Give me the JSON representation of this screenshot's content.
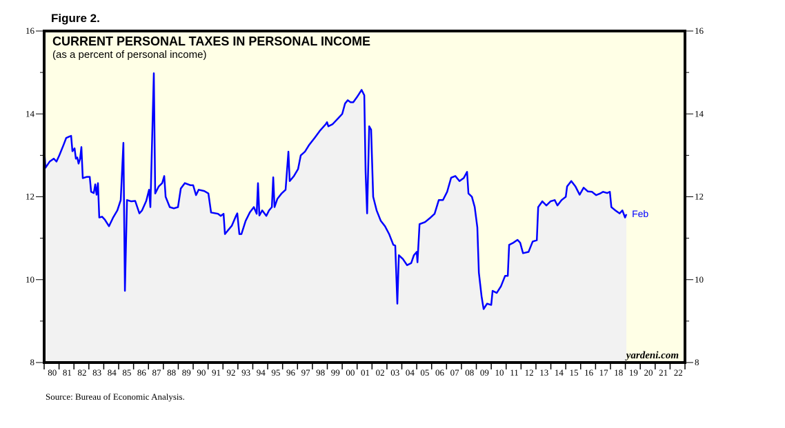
{
  "figure_label": "Figure 2.",
  "source": "Source: Bureau of Economic Analysis.",
  "brand": "yardeni.com",
  "colors": {
    "line": "#0000ff",
    "plot_bg": "#ffffe6",
    "area_fill": "#f2f2f2",
    "frame": "#000000"
  },
  "chart_data": {
    "type": "area",
    "title": "CURRENT PERSONAL TAXES IN PERSONAL INCOME",
    "subtitle": "(as a percent of personal income)",
    "ylim": [
      8,
      16
    ],
    "xlim": [
      1980,
      2023
    ],
    "y_ticks": [
      "8",
      "10",
      "12",
      "14",
      "16"
    ],
    "x_tick_labels": [
      "80",
      "81",
      "82",
      "83",
      "84",
      "85",
      "86",
      "87",
      "88",
      "89",
      "90",
      "91",
      "92",
      "93",
      "94",
      "95",
      "96",
      "97",
      "98",
      "99",
      "00",
      "01",
      "02",
      "03",
      "04",
      "05",
      "06",
      "07",
      "08",
      "09",
      "10",
      "11",
      "12",
      "13",
      "14",
      "15",
      "16",
      "17",
      "18",
      "19",
      "20",
      "21",
      "22"
    ],
    "end_label": "Feb",
    "grid": false,
    "series": [
      {
        "points": [
          [
            1980.0,
            13.17
          ],
          [
            1980.09,
            12.7
          ],
          [
            1980.37,
            12.85
          ],
          [
            1980.65,
            12.92
          ],
          [
            1980.83,
            12.85
          ],
          [
            1981.02,
            13.0
          ],
          [
            1981.3,
            13.25
          ],
          [
            1981.48,
            13.42
          ],
          [
            1981.67,
            13.45
          ],
          [
            1981.81,
            13.47
          ],
          [
            1981.9,
            13.1
          ],
          [
            1982.04,
            13.17
          ],
          [
            1982.13,
            12.92
          ],
          [
            1982.22,
            12.95
          ],
          [
            1982.31,
            12.8
          ],
          [
            1982.41,
            12.92
          ],
          [
            1982.5,
            13.2
          ],
          [
            1982.59,
            12.45
          ],
          [
            1982.87,
            12.48
          ],
          [
            1983.06,
            12.48
          ],
          [
            1983.15,
            12.12
          ],
          [
            1983.33,
            12.09
          ],
          [
            1983.43,
            12.3
          ],
          [
            1983.52,
            12.05
          ],
          [
            1983.61,
            12.33
          ],
          [
            1983.7,
            11.5
          ],
          [
            1983.89,
            11.52
          ],
          [
            1984.07,
            11.45
          ],
          [
            1984.35,
            11.29
          ],
          [
            1984.63,
            11.5
          ],
          [
            1984.91,
            11.67
          ],
          [
            1985.14,
            11.92
          ],
          [
            1985.32,
            13.3
          ],
          [
            1985.42,
            9.73
          ],
          [
            1985.56,
            11.92
          ],
          [
            1985.83,
            11.89
          ],
          [
            1986.11,
            11.9
          ],
          [
            1986.39,
            11.6
          ],
          [
            1986.57,
            11.67
          ],
          [
            1986.85,
            11.9
          ],
          [
            1987.04,
            12.17
          ],
          [
            1987.13,
            11.75
          ],
          [
            1987.36,
            14.98
          ],
          [
            1987.45,
            12.08
          ],
          [
            1987.69,
            12.25
          ],
          [
            1987.92,
            12.33
          ],
          [
            1988.06,
            12.5
          ],
          [
            1988.15,
            12.0
          ],
          [
            1988.43,
            11.75
          ],
          [
            1988.7,
            11.72
          ],
          [
            1988.98,
            11.75
          ],
          [
            1989.17,
            12.2
          ],
          [
            1989.44,
            12.33
          ],
          [
            1989.81,
            12.28
          ],
          [
            1990.0,
            12.28
          ],
          [
            1990.19,
            12.04
          ],
          [
            1990.37,
            12.17
          ],
          [
            1990.74,
            12.14
          ],
          [
            1991.02,
            12.08
          ],
          [
            1991.2,
            11.62
          ],
          [
            1991.67,
            11.59
          ],
          [
            1991.85,
            11.54
          ],
          [
            1992.04,
            11.59
          ],
          [
            1992.13,
            11.1
          ],
          [
            1992.31,
            11.18
          ],
          [
            1992.59,
            11.3
          ],
          [
            1992.87,
            11.54
          ],
          [
            1992.96,
            11.6
          ],
          [
            1993.1,
            11.1
          ],
          [
            1993.24,
            11.1
          ],
          [
            1993.52,
            11.42
          ],
          [
            1993.8,
            11.62
          ],
          [
            1994.07,
            11.75
          ],
          [
            1994.26,
            11.59
          ],
          [
            1994.35,
            12.33
          ],
          [
            1994.44,
            11.55
          ],
          [
            1994.63,
            11.67
          ],
          [
            1994.91,
            11.54
          ],
          [
            1995.09,
            11.67
          ],
          [
            1995.28,
            11.75
          ],
          [
            1995.37,
            12.47
          ],
          [
            1995.46,
            11.75
          ],
          [
            1995.65,
            11.95
          ],
          [
            1995.93,
            12.08
          ],
          [
            1996.2,
            12.17
          ],
          [
            1996.39,
            13.09
          ],
          [
            1996.48,
            12.38
          ],
          [
            1996.76,
            12.5
          ],
          [
            1997.04,
            12.67
          ],
          [
            1997.22,
            13.0
          ],
          [
            1997.5,
            13.09
          ],
          [
            1997.78,
            13.25
          ],
          [
            1998.15,
            13.42
          ],
          [
            1998.52,
            13.6
          ],
          [
            1998.89,
            13.75
          ],
          [
            1998.98,
            13.8
          ],
          [
            1999.07,
            13.7
          ],
          [
            1999.35,
            13.75
          ],
          [
            1999.72,
            13.89
          ],
          [
            2000.0,
            14.0
          ],
          [
            2000.19,
            14.25
          ],
          [
            2000.37,
            14.33
          ],
          [
            2000.56,
            14.28
          ],
          [
            2000.74,
            14.28
          ],
          [
            2001.02,
            14.42
          ],
          [
            2001.3,
            14.58
          ],
          [
            2001.48,
            14.45
          ],
          [
            2001.57,
            12.6
          ],
          [
            2001.67,
            11.6
          ],
          [
            2001.81,
            13.7
          ],
          [
            2001.94,
            13.62
          ],
          [
            2002.08,
            12.0
          ],
          [
            2002.31,
            11.67
          ],
          [
            2002.59,
            11.42
          ],
          [
            2002.87,
            11.29
          ],
          [
            2003.15,
            11.1
          ],
          [
            2003.43,
            10.84
          ],
          [
            2003.56,
            10.82
          ],
          [
            2003.7,
            9.42
          ],
          [
            2003.8,
            10.59
          ],
          [
            2004.07,
            10.5
          ],
          [
            2004.35,
            10.35
          ],
          [
            2004.63,
            10.4
          ],
          [
            2004.81,
            10.59
          ],
          [
            2005.0,
            10.67
          ],
          [
            2005.05,
            10.42
          ],
          [
            2005.19,
            11.34
          ],
          [
            2005.56,
            11.39
          ],
          [
            2005.93,
            11.5
          ],
          [
            2006.2,
            11.59
          ],
          [
            2006.48,
            11.92
          ],
          [
            2006.76,
            11.92
          ],
          [
            2007.04,
            12.12
          ],
          [
            2007.31,
            12.46
          ],
          [
            2007.59,
            12.5
          ],
          [
            2007.87,
            12.38
          ],
          [
            2008.15,
            12.45
          ],
          [
            2008.38,
            12.6
          ],
          [
            2008.47,
            12.08
          ],
          [
            2008.7,
            12.0
          ],
          [
            2008.89,
            11.75
          ],
          [
            2009.07,
            11.26
          ],
          [
            2009.17,
            10.17
          ],
          [
            2009.35,
            9.6
          ],
          [
            2009.49,
            9.29
          ],
          [
            2009.72,
            9.42
          ],
          [
            2010.0,
            9.39
          ],
          [
            2010.09,
            9.73
          ],
          [
            2010.37,
            9.68
          ],
          [
            2010.65,
            9.84
          ],
          [
            2010.93,
            10.09
          ],
          [
            2011.11,
            10.09
          ],
          [
            2011.2,
            10.84
          ],
          [
            2011.48,
            10.89
          ],
          [
            2011.76,
            10.96
          ],
          [
            2011.94,
            10.89
          ],
          [
            2012.13,
            10.64
          ],
          [
            2012.5,
            10.67
          ],
          [
            2012.78,
            10.92
          ],
          [
            2013.06,
            10.95
          ],
          [
            2013.15,
            11.75
          ],
          [
            2013.43,
            11.89
          ],
          [
            2013.7,
            11.79
          ],
          [
            2013.98,
            11.89
          ],
          [
            2014.26,
            11.92
          ],
          [
            2014.44,
            11.79
          ],
          [
            2014.72,
            11.92
          ],
          [
            2015.0,
            12.0
          ],
          [
            2015.09,
            12.25
          ],
          [
            2015.37,
            12.38
          ],
          [
            2015.65,
            12.25
          ],
          [
            2015.93,
            12.05
          ],
          [
            2016.2,
            12.22
          ],
          [
            2016.48,
            12.13
          ],
          [
            2016.76,
            12.12
          ],
          [
            2017.04,
            12.04
          ],
          [
            2017.31,
            12.08
          ],
          [
            2017.5,
            12.12
          ],
          [
            2017.78,
            12.09
          ],
          [
            2017.96,
            12.12
          ],
          [
            2018.06,
            11.75
          ],
          [
            2018.33,
            11.67
          ],
          [
            2018.61,
            11.6
          ],
          [
            2018.8,
            11.67
          ],
          [
            2018.98,
            11.5
          ],
          [
            2019.07,
            11.58
          ]
        ]
      }
    ]
  }
}
